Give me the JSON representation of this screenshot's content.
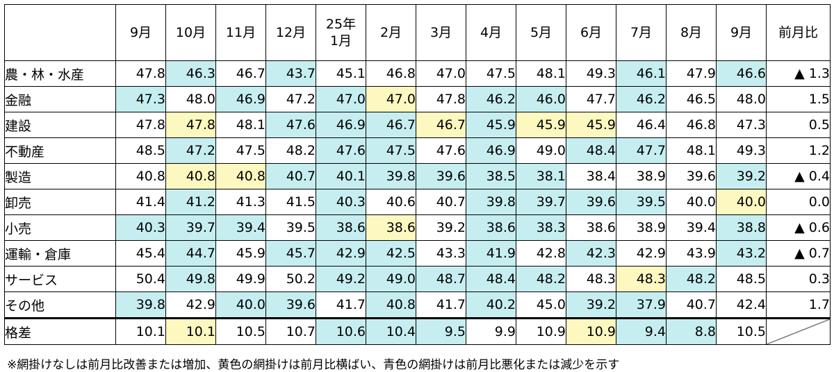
{
  "chart_data": {
    "type": "table",
    "columns": [
      "",
      "9月",
      "10月",
      "11月",
      "12月",
      "25年\n1月",
      "2月",
      "3月",
      "4月",
      "5月",
      "6月",
      "7月",
      "8月",
      "9月",
      "前月比"
    ],
    "rows": [
      {
        "label": "農・林・水産",
        "values": [
          "47.8",
          "46.3",
          "46.7",
          "43.7",
          "45.1",
          "46.8",
          "47.0",
          "47.5",
          "48.1",
          "49.3",
          "46.1",
          "47.9",
          "46.6"
        ],
        "shade": [
          "",
          "b",
          "",
          "b",
          "",
          "",
          "",
          "",
          "",
          "",
          "b",
          "",
          "b"
        ],
        "change": "▲ 1.3"
      },
      {
        "label": "金融",
        "values": [
          "47.3",
          "48.0",
          "46.9",
          "47.2",
          "47.0",
          "47.0",
          "47.8",
          "46.2",
          "46.0",
          "47.7",
          "46.2",
          "46.5",
          "48.0"
        ],
        "shade": [
          "b",
          "",
          "b",
          "",
          "b",
          "y",
          "",
          "b",
          "b",
          "",
          "b",
          "",
          ""
        ],
        "change": "1.5"
      },
      {
        "label": "建設",
        "values": [
          "47.8",
          "47.8",
          "48.1",
          "47.6",
          "46.9",
          "46.7",
          "46.7",
          "45.9",
          "45.9",
          "45.9",
          "46.4",
          "46.8",
          "47.3"
        ],
        "shade": [
          "",
          "y",
          "",
          "b",
          "b",
          "b",
          "y",
          "b",
          "y",
          "y",
          "",
          "",
          ""
        ],
        "change": "0.5"
      },
      {
        "label": "不動産",
        "values": [
          "48.5",
          "47.2",
          "47.5",
          "48.2",
          "47.6",
          "47.5",
          "47.6",
          "46.9",
          "49.0",
          "48.4",
          "47.7",
          "48.1",
          "49.3"
        ],
        "shade": [
          "",
          "b",
          "",
          "",
          "b",
          "b",
          "",
          "b",
          "",
          "b",
          "b",
          "",
          ""
        ],
        "change": "1.2"
      },
      {
        "label": "製造",
        "values": [
          "40.8",
          "40.8",
          "40.8",
          "40.7",
          "40.1",
          "39.8",
          "39.6",
          "38.5",
          "38.1",
          "38.4",
          "38.9",
          "39.6",
          "39.2"
        ],
        "shade": [
          "",
          "y",
          "y",
          "b",
          "b",
          "b",
          "b",
          "b",
          "b",
          "",
          "",
          "",
          "b"
        ],
        "change": "▲ 0.4"
      },
      {
        "label": "卸売",
        "values": [
          "41.4",
          "41.2",
          "41.3",
          "41.5",
          "40.3",
          "40.6",
          "40.7",
          "39.8",
          "39.7",
          "39.6",
          "39.5",
          "40.0",
          "40.0"
        ],
        "shade": [
          "",
          "b",
          "",
          "",
          "b",
          "",
          "",
          "b",
          "b",
          "b",
          "b",
          "",
          "y"
        ],
        "change": "0.0"
      },
      {
        "label": "小売",
        "values": [
          "40.3",
          "39.7",
          "39.4",
          "39.5",
          "38.6",
          "38.6",
          "39.2",
          "38.6",
          "38.3",
          "38.6",
          "38.9",
          "39.4",
          "38.8"
        ],
        "shade": [
          "b",
          "b",
          "b",
          "",
          "b",
          "y",
          "",
          "b",
          "b",
          "",
          "",
          "",
          "b"
        ],
        "change": "▲ 0.6"
      },
      {
        "label": "運輸・倉庫",
        "values": [
          "45.4",
          "44.7",
          "45.9",
          "45.7",
          "42.9",
          "42.5",
          "43.3",
          "41.9",
          "42.8",
          "42.3",
          "42.9",
          "43.9",
          "43.2"
        ],
        "shade": [
          "",
          "b",
          "",
          "b",
          "b",
          "b",
          "",
          "b",
          "",
          "b",
          "",
          "",
          "b"
        ],
        "change": "▲ 0.7"
      },
      {
        "label": "サービス",
        "values": [
          "50.4",
          "49.8",
          "49.9",
          "50.2",
          "49.2",
          "49.0",
          "48.7",
          "48.4",
          "48.2",
          "48.3",
          "48.3",
          "48.2",
          "48.5"
        ],
        "shade": [
          "",
          "b",
          "",
          "",
          "b",
          "b",
          "b",
          "b",
          "b",
          "",
          "y",
          "b",
          ""
        ],
        "change": "0.3"
      },
      {
        "label": "その他",
        "values": [
          "39.8",
          "42.9",
          "40.0",
          "39.6",
          "41.7",
          "40.8",
          "41.7",
          "40.2",
          "45.0",
          "39.2",
          "37.9",
          "40.7",
          "42.4"
        ],
        "shade": [
          "b",
          "",
          "b",
          "b",
          "",
          "b",
          "",
          "b",
          "",
          "b",
          "b",
          "",
          ""
        ],
        "change": "1.7"
      }
    ],
    "gap_row": {
      "label": "格差",
      "values": [
        "10.1",
        "10.1",
        "10.5",
        "10.7",
        "10.6",
        "10.4",
        "9.5",
        "9.9",
        "10.9",
        "10.9",
        "9.4",
        "8.8",
        "10.5"
      ],
      "shade": [
        "",
        "y",
        "",
        "",
        "b",
        "b",
        "b",
        "",
        "",
        "y",
        "b",
        "b",
        ""
      ]
    },
    "colors": {
      "blue": "#c6eef0",
      "yellow": "#fdf7c0"
    },
    "note": "※網掛けなしは前月比改善または増加、黄色の網掛けは前月比横ばい、青色の網掛けは前月比悪化または減少を示す"
  }
}
